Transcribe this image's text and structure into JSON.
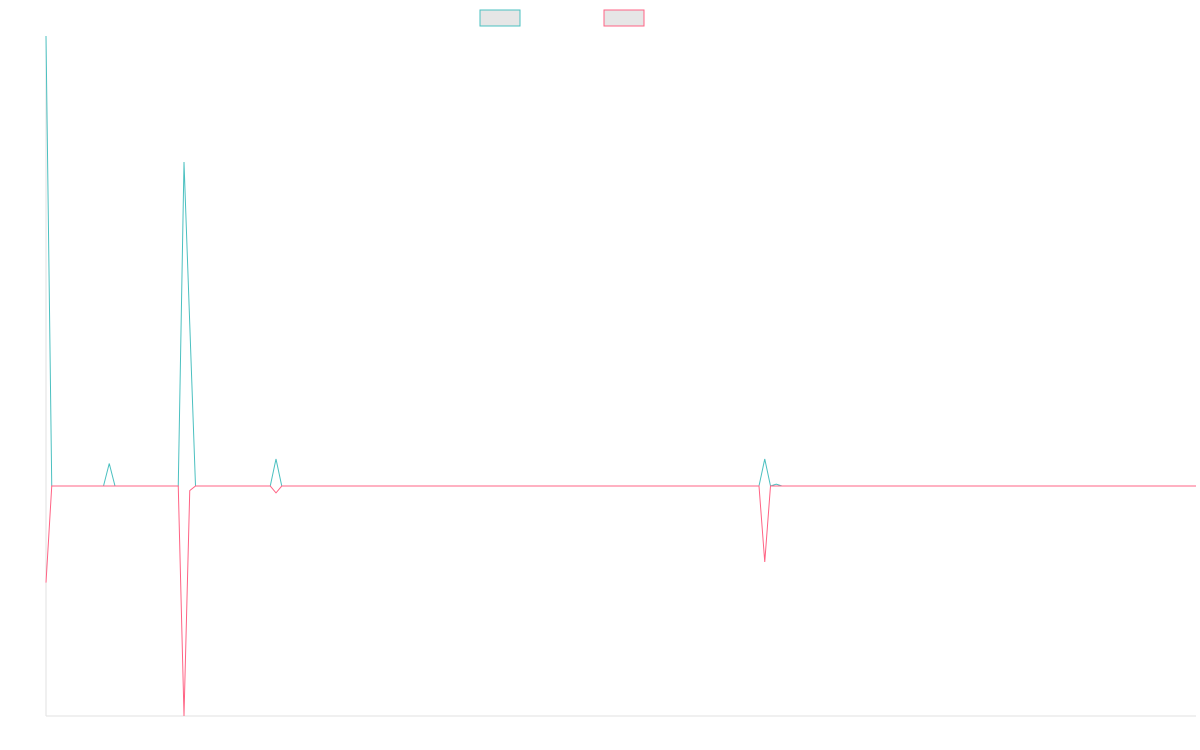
{
  "chart_data": {
    "type": "line",
    "title": "",
    "xlabel": "",
    "ylabel": "",
    "legend": "top-center",
    "grid": false,
    "x_count": 201,
    "ylim": [
      -1.0,
      1.0
    ],
    "series": [
      {
        "color": "#4bc0c0",
        "legend_fill": "#e6e6e6",
        "points": [
          [
            0,
            1.0
          ],
          [
            1,
            0.0
          ],
          [
            10,
            0.0
          ],
          [
            11,
            0.05
          ],
          [
            12,
            0.0
          ],
          [
            23,
            0.0
          ],
          [
            24,
            0.72
          ],
          [
            25,
            0.36
          ],
          [
            26,
            0.0
          ],
          [
            39,
            0.0
          ],
          [
            40,
            0.06
          ],
          [
            41,
            0.0
          ],
          [
            43,
            0.0
          ],
          [
            124,
            0.0
          ],
          [
            125,
            0.06
          ],
          [
            126,
            0.0
          ],
          [
            127,
            0.004
          ],
          [
            128,
            0.0
          ],
          [
            200,
            0.0
          ]
        ]
      },
      {
        "color": "#ff6384",
        "legend_fill": "#e6e6e6",
        "points": [
          [
            0,
            -0.42
          ],
          [
            1,
            0.0
          ],
          [
            23,
            0.0
          ],
          [
            24,
            -1.0
          ],
          [
            25,
            -0.02
          ],
          [
            26,
            0.0
          ],
          [
            39,
            0.0
          ],
          [
            40,
            -0.03
          ],
          [
            41,
            0.0
          ],
          [
            124,
            0.0
          ],
          [
            125,
            -0.33
          ],
          [
            126,
            0.0
          ],
          [
            200,
            0.0
          ]
        ]
      }
    ]
  }
}
